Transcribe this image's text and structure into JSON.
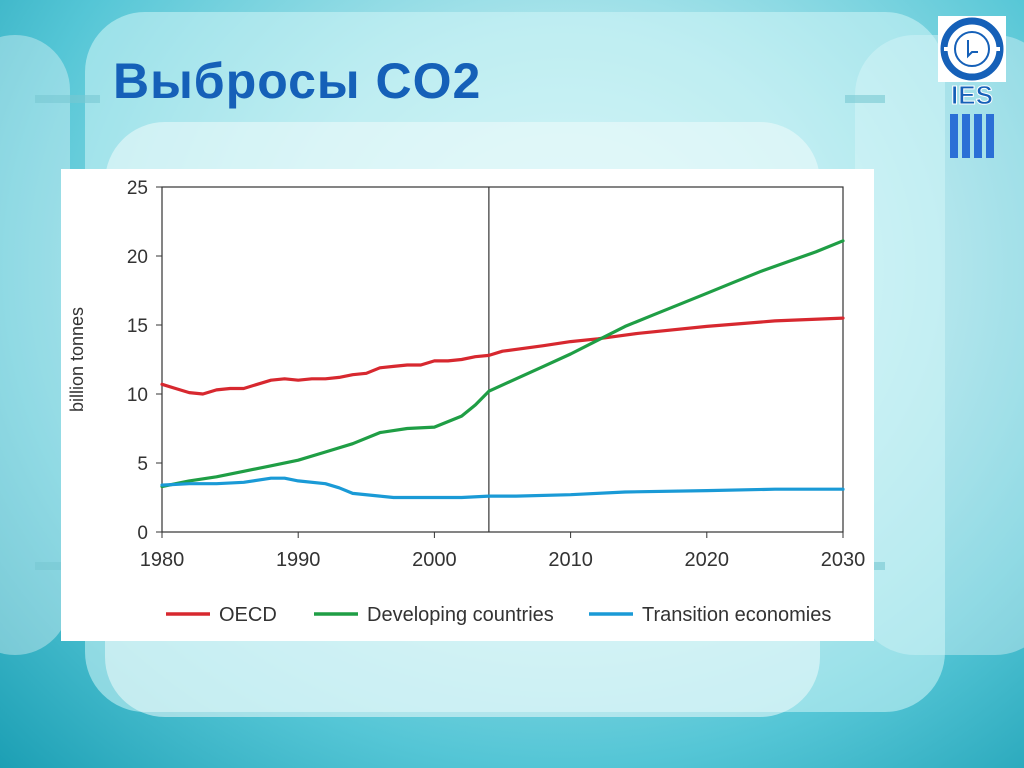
{
  "slide": {
    "title": "Выбросы CO2"
  },
  "logo": {
    "text": "IES",
    "icon": "ies-logo-icon"
  },
  "colors": {
    "title": "#1560b8",
    "oecd": "#d7282f",
    "developing": "#1f9e45",
    "transition": "#1a9ad6"
  },
  "chart_data": {
    "type": "line",
    "title": "",
    "xlabel": "",
    "ylabel": "billion tonnes",
    "xlim": [
      1980,
      2030
    ],
    "ylim": [
      0,
      25
    ],
    "xticks": [
      1980,
      1990,
      2000,
      2010,
      2020,
      2030
    ],
    "yticks": [
      0,
      5,
      10,
      15,
      20,
      25
    ],
    "vline_x": 2004,
    "grid": false,
    "legend_position": "bottom",
    "series": [
      {
        "name": "OECD",
        "color": "#d7282f",
        "x": [
          1980,
          1981,
          1982,
          1983,
          1984,
          1985,
          1986,
          1987,
          1988,
          1989,
          1990,
          1991,
          1992,
          1993,
          1994,
          1995,
          1996,
          1997,
          1998,
          1999,
          2000,
          2001,
          2002,
          2003,
          2004,
          2005,
          2008,
          2010,
          2012,
          2015,
          2020,
          2025,
          2030
        ],
        "y": [
          10.7,
          10.4,
          10.1,
          10.0,
          10.3,
          10.4,
          10.4,
          10.7,
          11.0,
          11.1,
          11.0,
          11.1,
          11.1,
          11.2,
          11.4,
          11.5,
          11.9,
          12.0,
          12.1,
          12.1,
          12.4,
          12.4,
          12.5,
          12.7,
          12.8,
          13.1,
          13.5,
          13.8,
          14.0,
          14.4,
          14.9,
          15.3,
          15.5
        ]
      },
      {
        "name": "Developing countries",
        "color": "#1f9e45",
        "x": [
          1980,
          1982,
          1984,
          1986,
          1988,
          1990,
          1992,
          1994,
          1996,
          1998,
          2000,
          2002,
          2003,
          2004,
          2006,
          2008,
          2010,
          2012,
          2014,
          2016,
          2018,
          2020,
          2022,
          2024,
          2026,
          2028,
          2030
        ],
        "y": [
          3.3,
          3.7,
          4.0,
          4.4,
          4.8,
          5.2,
          5.8,
          6.4,
          7.2,
          7.5,
          7.6,
          8.4,
          9.2,
          10.2,
          11.1,
          12.0,
          12.9,
          13.9,
          14.9,
          15.7,
          16.5,
          17.3,
          18.1,
          18.9,
          19.6,
          20.3,
          21.1
        ]
      },
      {
        "name": "Transition economies",
        "color": "#1a9ad6",
        "x": [
          1980,
          1982,
          1984,
          1986,
          1988,
          1989,
          1990,
          1992,
          1993,
          1994,
          1996,
          1997,
          1998,
          2000,
          2002,
          2004,
          2006,
          2010,
          2014,
          2020,
          2025,
          2028,
          2030
        ],
        "y": [
          3.4,
          3.5,
          3.5,
          3.6,
          3.9,
          3.9,
          3.7,
          3.5,
          3.2,
          2.8,
          2.6,
          2.5,
          2.5,
          2.5,
          2.5,
          2.6,
          2.6,
          2.7,
          2.9,
          3.0,
          3.1,
          3.1,
          3.1
        ]
      }
    ]
  }
}
